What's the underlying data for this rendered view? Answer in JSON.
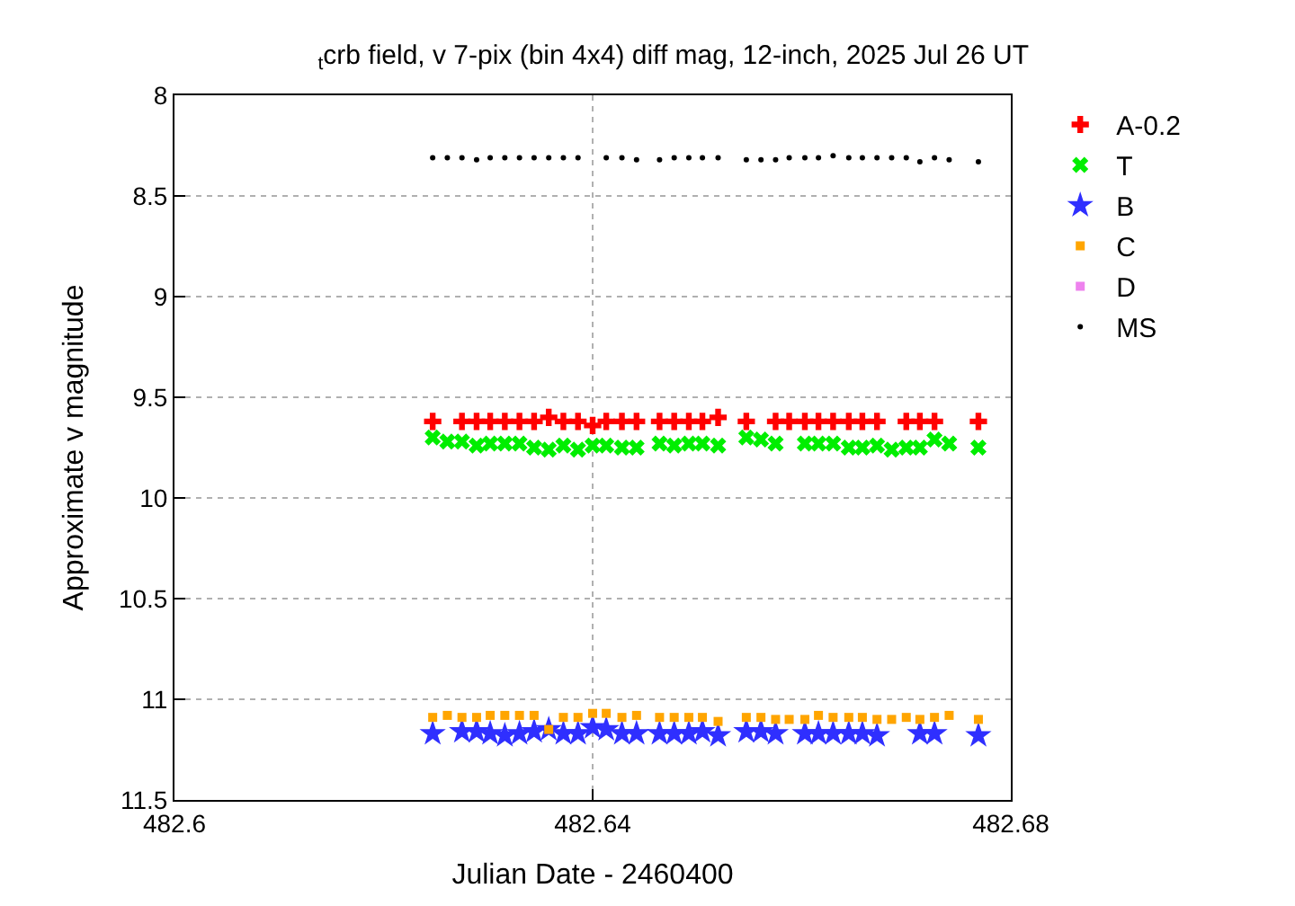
{
  "chart_data": {
    "type": "scatter",
    "title": "$_{t}$crb field, v 7-pix (bin 4x4) diff mag, 12-inch, 2025 Jul 26 UT",
    "xlabel": "Julian Date - 2460400",
    "ylabel": "Approximate v magnitude",
    "x": [
      482.6247,
      482.6261,
      482.6275,
      482.6289,
      482.6302,
      482.6316,
      482.633,
      482.6344,
      482.6358,
      482.6372,
      482.6386,
      482.64,
      482.6413,
      482.6428,
      482.6442,
      482.6464,
      482.6478,
      482.6492,
      482.6505,
      482.652,
      482.6547,
      482.6561,
      482.6575,
      482.6588,
      482.6603,
      482.6616,
      482.663,
      482.6645,
      482.6658,
      482.6672,
      482.6686,
      482.67,
      482.6713,
      482.6727,
      482.6741,
      482.6769
    ],
    "series": [
      {
        "name": "A-0.2",
        "color": "#ff0000",
        "marker": "cross",
        "values": [
          9.62,
          null,
          9.62,
          9.62,
          9.62,
          9.62,
          9.62,
          9.62,
          9.6,
          9.62,
          9.62,
          9.64,
          9.62,
          9.62,
          9.62,
          9.62,
          9.62,
          9.62,
          9.62,
          9.6,
          9.62,
          null,
          9.62,
          9.62,
          9.62,
          9.62,
          9.62,
          9.62,
          9.62,
          9.62,
          null,
          9.62,
          9.62,
          9.62,
          null,
          9.62
        ]
      },
      {
        "name": "T",
        "color": "#00ee00",
        "marker": "x",
        "values": [
          9.7,
          9.72,
          9.72,
          9.74,
          9.73,
          9.73,
          9.73,
          9.75,
          9.76,
          9.74,
          9.76,
          9.74,
          9.74,
          9.75,
          9.75,
          9.73,
          9.74,
          9.73,
          9.73,
          9.74,
          9.7,
          9.71,
          9.73,
          null,
          9.73,
          9.73,
          9.73,
          9.75,
          9.75,
          9.74,
          9.76,
          9.75,
          9.75,
          9.71,
          9.73,
          9.75
        ]
      },
      {
        "name": "B",
        "color": "#2f2fff",
        "marker": "star",
        "values": [
          11.17,
          null,
          11.16,
          11.16,
          11.17,
          11.18,
          11.17,
          11.16,
          11.15,
          11.17,
          11.17,
          11.14,
          11.15,
          11.17,
          11.17,
          11.17,
          11.17,
          11.17,
          11.16,
          11.18,
          11.16,
          11.16,
          11.17,
          null,
          11.17,
          11.17,
          11.17,
          11.17,
          11.17,
          11.18,
          null,
          null,
          11.17,
          11.17,
          null,
          11.18
        ]
      },
      {
        "name": "C",
        "color": "#ffa500",
        "marker": "square",
        "values": [
          11.09,
          11.08,
          11.09,
          11.09,
          11.08,
          11.08,
          11.08,
          11.08,
          11.15,
          11.09,
          11.09,
          11.07,
          11.07,
          11.09,
          11.08,
          11.09,
          11.09,
          11.09,
          11.09,
          11.11,
          11.09,
          11.09,
          11.1,
          11.1,
          11.1,
          11.08,
          11.09,
          11.09,
          11.09,
          11.1,
          11.1,
          11.09,
          11.1,
          11.09,
          11.08,
          11.1
        ]
      },
      {
        "name": "D",
        "color": "#ee82ee",
        "marker": "square",
        "values": [
          null,
          null,
          null,
          null,
          null,
          null,
          null,
          null,
          null,
          null,
          null,
          null,
          null,
          null,
          null,
          null,
          null,
          null,
          null,
          null,
          null,
          null,
          null,
          null,
          null,
          null,
          null,
          null,
          null,
          null,
          null,
          null,
          null,
          null,
          null,
          null
        ]
      },
      {
        "name": "MS",
        "color": "#000000",
        "marker": "circle",
        "values": [
          8.31,
          8.31,
          8.31,
          8.32,
          8.31,
          8.31,
          8.31,
          8.31,
          8.31,
          8.31,
          8.31,
          null,
          8.31,
          8.31,
          8.32,
          8.32,
          8.31,
          8.31,
          8.31,
          8.31,
          8.32,
          8.32,
          8.32,
          8.31,
          8.31,
          8.31,
          8.3,
          8.31,
          8.31,
          8.31,
          8.31,
          8.31,
          8.33,
          8.31,
          8.32,
          8.33
        ]
      }
    ],
    "xlim": [
      482.6,
      482.68
    ],
    "xticks": [
      482.6,
      482.64,
      482.68
    ],
    "ylim": [
      11.5,
      8
    ],
    "yticks": [
      8,
      8.5,
      9,
      9.5,
      10,
      10.5,
      11,
      11.5
    ],
    "grid": true,
    "legend": "top right"
  }
}
